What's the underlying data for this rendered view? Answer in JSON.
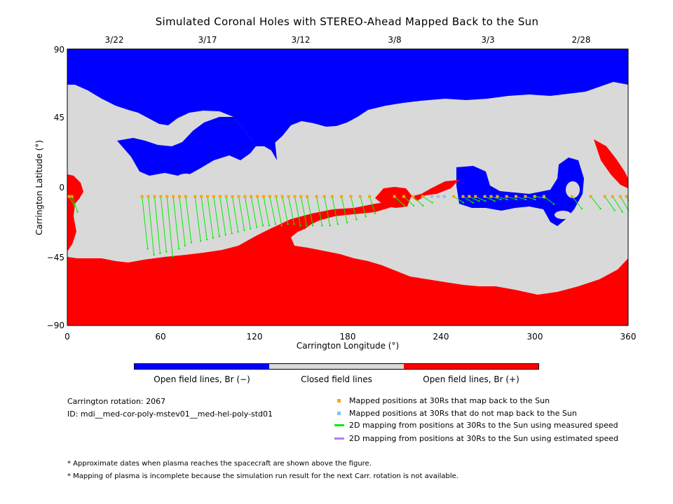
{
  "chart_data": {
    "type": "heatmap",
    "title": "Simulated Coronal Holes with STEREO-Ahead Mapped Back to the Sun",
    "xlabel": "Carrington Longitude (°)",
    "ylabel": "Carrington Latitude (°)",
    "xlim": [
      0,
      360
    ],
    "ylim": [
      -90,
      90
    ],
    "x_ticks": [
      "0",
      "60",
      "120",
      "180",
      "240",
      "300",
      "360"
    ],
    "y_ticks": [
      "90",
      "45",
      "0",
      "−45",
      "−90"
    ],
    "top_dates": [
      "3/22",
      "3/17",
      "3/12",
      "3/8",
      "3/3",
      "2/28"
    ],
    "top_date_longitudes": [
      30,
      90,
      150,
      210,
      270,
      330
    ],
    "colors": {
      "open_negative": "#0000ff",
      "closed": "#d9d9d9",
      "open_positive": "#ff0000",
      "mapped_back": "#ffa500",
      "not_mapped_back": "#88c0f0",
      "measured_speed": "#00ee00",
      "estimated_speed": "#b080f0"
    },
    "colorbar": {
      "labels": [
        "Open field lines, Br (−)",
        "Closed field lines",
        "Open field lines, Br (+)"
      ]
    },
    "footpoint_latitude": -6,
    "mapped_points": [
      {
        "lon": 48,
        "sun_lat": -40,
        "mapped": true
      },
      {
        "lon": 52,
        "sun_lat": -44,
        "mapped": true
      },
      {
        "lon": 56,
        "sun_lat": -43,
        "mapped": true
      },
      {
        "lon": 60,
        "sun_lat": -42,
        "mapped": true
      },
      {
        "lon": 64,
        "sun_lat": -45,
        "mapped": true
      },
      {
        "lon": 68,
        "sun_lat": -40,
        "mapped": true
      },
      {
        "lon": 72,
        "sun_lat": -38,
        "mapped": true
      },
      {
        "lon": 76,
        "sun_lat": -36,
        "mapped": true
      },
      {
        "lon": 82,
        "sun_lat": -35,
        "mapped": true
      },
      {
        "lon": 86,
        "sun_lat": -34,
        "mapped": true
      },
      {
        "lon": 90,
        "sun_lat": -33,
        "mapped": true
      },
      {
        "lon": 94,
        "sun_lat": -32,
        "mapped": true
      },
      {
        "lon": 98,
        "sun_lat": -31,
        "mapped": true
      },
      {
        "lon": 102,
        "sun_lat": -30,
        "mapped": true
      },
      {
        "lon": 106,
        "sun_lat": -29,
        "mapped": true
      },
      {
        "lon": 110,
        "sun_lat": -28,
        "mapped": true
      },
      {
        "lon": 114,
        "sun_lat": -27,
        "mapped": true
      },
      {
        "lon": 118,
        "sun_lat": -26,
        "mapped": true
      },
      {
        "lon": 122,
        "sun_lat": -25,
        "mapped": true
      },
      {
        "lon": 126,
        "sun_lat": -25,
        "mapped": true
      },
      {
        "lon": 130,
        "sun_lat": -24,
        "mapped": true
      },
      {
        "lon": 134,
        "sun_lat": -25,
        "mapped": true
      },
      {
        "lon": 138,
        "sun_lat": -24,
        "mapped": true
      },
      {
        "lon": 142,
        "sun_lat": -24,
        "mapped": true
      },
      {
        "lon": 146,
        "sun_lat": -25,
        "mapped": true
      },
      {
        "lon": 150,
        "sun_lat": -25,
        "mapped": true
      },
      {
        "lon": 154,
        "sun_lat": -25,
        "mapped": true
      },
      {
        "lon": 160,
        "sun_lat": -25,
        "mapped": true
      },
      {
        "lon": 165,
        "sun_lat": -25,
        "mapped": true
      },
      {
        "lon": 170,
        "sun_lat": -24,
        "mapped": true
      },
      {
        "lon": 176,
        "sun_lat": -23,
        "mapped": true
      },
      {
        "lon": 182,
        "sun_lat": -21,
        "mapped": true
      },
      {
        "lon": 188,
        "sun_lat": -19,
        "mapped": true
      },
      {
        "lon": 194,
        "sun_lat": -17,
        "mapped": true
      },
      {
        "lon": 210,
        "sun_lat": -12,
        "mapped": true
      },
      {
        "lon": 216,
        "sun_lat": -12,
        "mapped": true
      },
      {
        "lon": 222,
        "sun_lat": -12,
        "mapped": true
      },
      {
        "lon": 228,
        "sun_lat": -10,
        "mapped": true
      },
      {
        "lon": 234,
        "sun_lat": -6,
        "mapped": false
      },
      {
        "lon": 238,
        "sun_lat": -6,
        "mapped": false
      },
      {
        "lon": 242,
        "sun_lat": -6,
        "mapped": false
      },
      {
        "lon": 248,
        "sun_lat": -10,
        "mapped": true
      },
      {
        "lon": 254,
        "sun_lat": -10,
        "mapped": true
      },
      {
        "lon": 258,
        "sun_lat": -9,
        "mapped": true
      },
      {
        "lon": 262,
        "sun_lat": -9,
        "mapped": true
      },
      {
        "lon": 268,
        "sun_lat": -9,
        "mapped": true
      },
      {
        "lon": 272,
        "sun_lat": -8,
        "mapped": true
      },
      {
        "lon": 276,
        "sun_lat": -8,
        "mapped": true
      },
      {
        "lon": 282,
        "sun_lat": -8,
        "mapped": true
      },
      {
        "lon": 288,
        "sun_lat": -8,
        "mapped": true
      },
      {
        "lon": 294,
        "sun_lat": -8,
        "mapped": true
      },
      {
        "lon": 300,
        "sun_lat": -7,
        "mapped": true
      },
      {
        "lon": 306,
        "sun_lat": -11,
        "mapped": true
      },
      {
        "lon": 324,
        "sun_lat": -14,
        "mapped": true
      },
      {
        "lon": 336,
        "sun_lat": -14,
        "mapped": true
      },
      {
        "lon": 345,
        "sun_lat": -15,
        "mapped": true
      },
      {
        "lon": 350,
        "sun_lat": -16,
        "mapped": true
      },
      {
        "lon": 355,
        "sun_lat": -17,
        "mapped": true
      },
      {
        "lon": 359,
        "sun_lat": -18,
        "mapped": true
      },
      {
        "lon": 1,
        "sun_lat": -12,
        "mapped": true
      },
      {
        "lon": 3,
        "sun_lat": -16,
        "mapped": true
      }
    ]
  },
  "info": {
    "rotation": "Carrington rotation: 2067",
    "id": "ID: mdi__med-cor-poly-mstev01__med-hel-poly-std01"
  },
  "legend": [
    {
      "kind": "square",
      "color": "#ffa500",
      "label": "Mapped positions at 30Rs that map back to the Sun"
    },
    {
      "kind": "square",
      "color": "#88c0f0",
      "label": "Mapped positions at 30Rs that do not map back to the Sun"
    },
    {
      "kind": "line",
      "color": "#00ee00",
      "label": "2D mapping from positions at 30Rs to the Sun using measured speed"
    },
    {
      "kind": "line",
      "color": "#b080f0",
      "label": "2D mapping from positions at 30Rs to the Sun using estimated speed"
    }
  ],
  "notes": [
    "* Approximate dates when plasma reaches the spacecraft are shown above the figure.",
    "* Mapping of plasma is incomplete because the simulation run result for the next Carr. rotation is not available."
  ]
}
